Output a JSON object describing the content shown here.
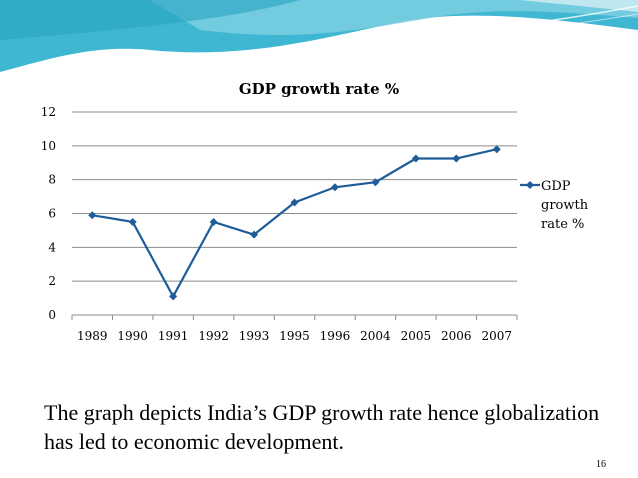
{
  "slide": {
    "caption": "The graph depicts India’s GDP  growth rate hence globalization has led to economic  development.",
    "page_number": "16"
  },
  "colors": {
    "series": "#1f5c99",
    "grid": "#8c8c8c",
    "banner_dark": "#3fb7d2",
    "banner_light": "#bfe7f0"
  },
  "chart_data": {
    "type": "line",
    "title": "GDP growth rate %",
    "categories": [
      "1989",
      "1990",
      "1991",
      "1992",
      "1993",
      "1995",
      "1996",
      "2004",
      "2005",
      "2006",
      "2007"
    ],
    "series": [
      {
        "name": "GDP growth rate %",
        "values": [
          5.9,
          5.5,
          1.1,
          5.5,
          4.75,
          6.65,
          7.55,
          7.85,
          9.25,
          9.25,
          9.8
        ]
      }
    ],
    "ylim": [
      0,
      12
    ],
    "yticks": [
      0,
      2,
      4,
      6,
      8,
      10,
      12
    ],
    "legend": {
      "position": "right",
      "lines": [
        "GDP",
        "growth",
        "rate %"
      ]
    },
    "grid": true
  }
}
